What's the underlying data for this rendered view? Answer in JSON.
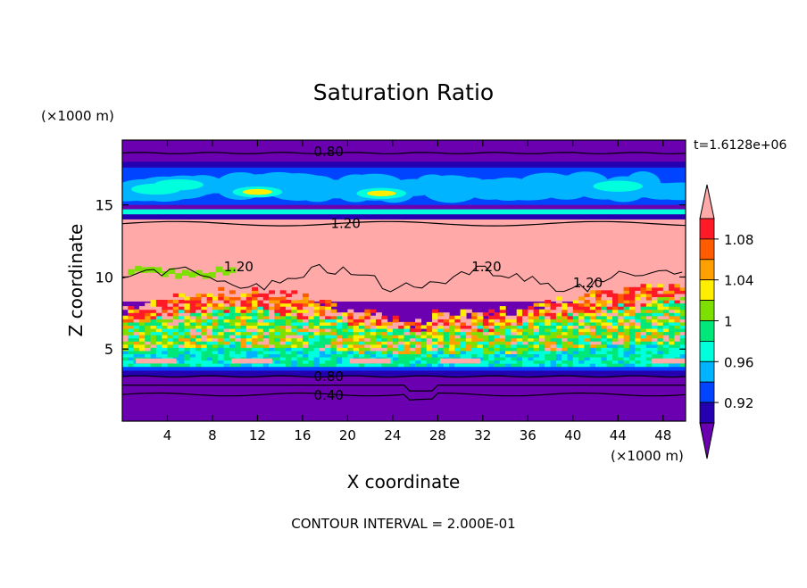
{
  "chart_data": {
    "type": "heatmap",
    "title": "Saturation Ratio",
    "xlabel": "X coordinate",
    "ylabel": "Z coordinate",
    "x_unit": "(×1000 m)",
    "y_unit": "(×1000 m)",
    "time_label": "t=1.6128e+06",
    "footer": "CONTOUR INTERVAL = 2.000E-01",
    "xlim": [
      0,
      50
    ],
    "ylim": [
      0,
      19.5
    ],
    "x_ticks": [
      4,
      8,
      12,
      16,
      20,
      24,
      28,
      32,
      36,
      40,
      44,
      48
    ],
    "y_ticks": [
      5,
      10,
      15
    ],
    "colorbar": {
      "tick_labels": [
        "1.08",
        "1.04",
        "1",
        "0.96",
        "0.92"
      ],
      "tick_values": [
        1.08,
        1.04,
        1.0,
        0.96,
        0.92
      ],
      "levels": [
        0.9,
        0.92,
        0.94,
        0.96,
        0.98,
        1.0,
        1.02,
        1.04,
        1.06,
        1.08,
        1.1
      ],
      "colors": [
        "#6a00b0",
        "#2400b0",
        "#0044ff",
        "#00b4ff",
        "#00ffdc",
        "#00e87a",
        "#7ee000",
        "#ffee00",
        "#ffa000",
        "#ff5c00",
        "#ff1a28",
        "#ffa9a9"
      ],
      "extend": "both"
    },
    "bands": [
      {
        "z_range": [
          0,
          3.5
        ],
        "value": "< 0.92"
      },
      {
        "z_range": [
          3.5,
          8.5
        ],
        "value": "0.96 – 1.1 (mixed)"
      },
      {
        "z_range": [
          8.5,
          14.0
        ],
        "value": "> 1.1"
      },
      {
        "z_range": [
          14.0,
          15.0
        ],
        "value": "0.92 – 0.96"
      },
      {
        "z_range": [
          15.0,
          17.5
        ],
        "value": "0.94 – 1.02 (mixed)"
      },
      {
        "z_range": [
          17.5,
          19.5
        ],
        "value": "< 0.92"
      }
    ],
    "contour_labels": [
      {
        "text": "0.80",
        "x": 17,
        "z": 18.7
      },
      {
        "text": "1.20",
        "x": 18.5,
        "z": 13.7
      },
      {
        "text": "1.20",
        "x": 9,
        "z": 10.7
      },
      {
        "text": "1.20",
        "x": 31,
        "z": 10.7
      },
      {
        "text": "1.20",
        "x": 40,
        "z": 9.6
      },
      {
        "text": "0.80",
        "x": 17,
        "z": 3.1
      },
      {
        "text": "0.40",
        "x": 17,
        "z": 1.8
      }
    ]
  }
}
